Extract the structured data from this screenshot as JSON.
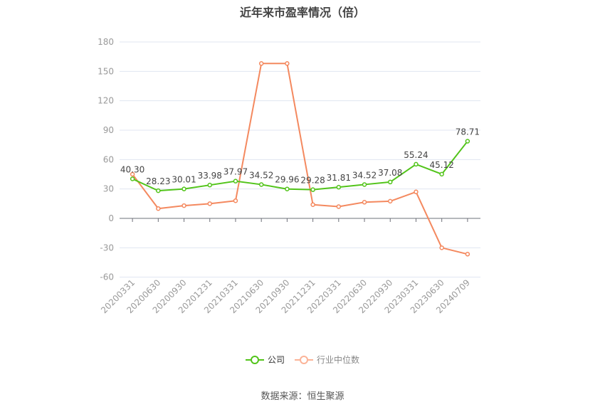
{
  "title": "近年来市盈率情况（倍）",
  "source": "数据来源：恒生聚源",
  "legend": [
    {
      "label": "公司",
      "color": "#52c41a",
      "icon": "circle-line-icon"
    },
    {
      "label": "行业中位数",
      "color": "#fbb397",
      "icon": "circle-line-icon"
    }
  ],
  "chart_data": {
    "type": "line",
    "title": "近年来市盈率情况（倍）",
    "xlabel": "",
    "ylabel": "",
    "ylim": [
      -60,
      180
    ],
    "yticks": [
      -60,
      -30,
      0,
      30,
      60,
      90,
      120,
      150,
      180
    ],
    "grid": true,
    "legend_position": "bottom",
    "categories": [
      "20200331",
      "20200630",
      "20200930",
      "20201231",
      "20210331",
      "20210630",
      "20210930",
      "20211231",
      "20220331",
      "20220630",
      "20220930",
      "20230331",
      "20230630",
      "20240709"
    ],
    "series": [
      {
        "name": "公司",
        "color": "#52c41a",
        "show_labels": true,
        "values": [
          40.3,
          28.23,
          30.01,
          33.98,
          37.97,
          34.52,
          29.96,
          29.28,
          31.81,
          34.52,
          37.08,
          55.24,
          45.12,
          78.71
        ]
      },
      {
        "name": "行业中位数",
        "color": "#f4895f",
        "show_labels": false,
        "values": [
          45,
          10,
          13,
          15,
          18,
          158,
          158,
          14,
          12,
          16.5,
          17.5,
          27,
          -30,
          -36.5
        ]
      }
    ]
  }
}
